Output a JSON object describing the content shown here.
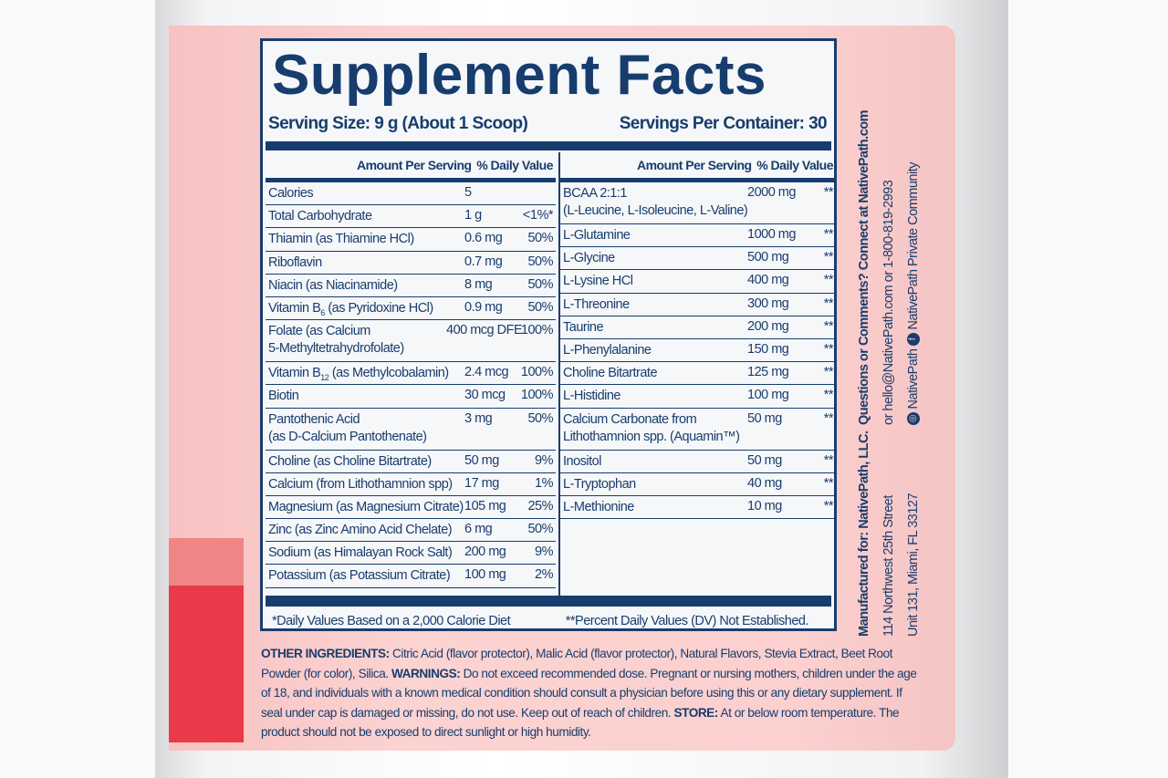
{
  "panel": {
    "title": "Supplement Facts",
    "serving_size": "Serving Size: 9 g (About 1 Scoop)",
    "servings_per_container": "Servings Per Container: 30",
    "header_amount": "Amount Per Serving",
    "header_dv": "% Daily Value",
    "left_rows": [
      {
        "name": "Calories",
        "sub": "",
        "rest": "",
        "amount": "5",
        "dv": "",
        "tall": false
      },
      {
        "name": "Total Carbohydrate",
        "sub": "",
        "rest": "",
        "amount": "1 g",
        "dv": "<1%*",
        "tall": false
      },
      {
        "name": "Thiamin (as Thiamine HCl)",
        "sub": "",
        "rest": "",
        "amount": "0.6 mg",
        "dv": "50%",
        "tall": false
      },
      {
        "name": "Riboflavin",
        "sub": "",
        "rest": "",
        "amount": "0.7 mg",
        "dv": "50%",
        "tall": false
      },
      {
        "name": "Niacin (as Niacinamide)",
        "sub": "",
        "rest": "",
        "amount": "8 mg",
        "dv": "50%",
        "tall": false
      },
      {
        "name": "Vitamin B",
        "sub": "6",
        "rest": " (as Pyridoxine HCl)",
        "amount": "0.9 mg",
        "dv": "50%",
        "tall": false
      },
      {
        "name": "Folate (as Calcium",
        "sub": "",
        "rest": "",
        "line2": "5-Methyltetrahydrofolate)",
        "amount": "400 mcg DFE",
        "dv": "100%",
        "tall": true
      },
      {
        "name": "Vitamin B",
        "sub": "12",
        "rest": " (as Methylcobalamin)",
        "amount": "2.4 mcg",
        "dv": "100%",
        "tall": false
      },
      {
        "name": "Biotin",
        "sub": "",
        "rest": "",
        "amount": "30 mcg",
        "dv": "100%",
        "tall": false
      },
      {
        "name": "Pantothenic Acid",
        "sub": "",
        "rest": "",
        "line2": "(as D-Calcium Pantothenate)",
        "amount": "3 mg",
        "dv": "50%",
        "tall": true
      },
      {
        "name": "Choline (as Choline Bitartrate)",
        "sub": "",
        "rest": "",
        "amount": "50 mg",
        "dv": "9%",
        "tall": false
      },
      {
        "name": "Calcium (from Lithothamnion spp)",
        "sub": "",
        "rest": "",
        "amount": "17 mg",
        "dv": "1%",
        "tall": false
      },
      {
        "name": "Magnesium (as Magnesium Citrate)",
        "sub": "",
        "rest": "",
        "amount": "105 mg",
        "dv": "25%",
        "tall": false
      },
      {
        "name": "Zinc (as Zinc Amino Acid Chelate)",
        "sub": "",
        "rest": "",
        "amount": "6 mg",
        "dv": "50%",
        "tall": false
      },
      {
        "name": "Sodium (as Himalayan Rock Salt)",
        "sub": "",
        "rest": "",
        "amount": "200 mg",
        "dv": "9%",
        "tall": false
      },
      {
        "name": "Potassium (as Potassium Citrate)",
        "sub": "",
        "rest": "",
        "amount": "100 mg",
        "dv": "2%",
        "tall": false
      }
    ],
    "right_rows": [
      {
        "name": "BCAA 2:1:1",
        "line2": "(L-Leucine, L-Isoleucine, L-Valine)",
        "amount": "2000 mg",
        "dv": "**",
        "tall": true
      },
      {
        "name": "L-Glutamine",
        "amount": "1000 mg",
        "dv": "**",
        "tall": false
      },
      {
        "name": "L-Glycine",
        "amount": "500 mg",
        "dv": "**",
        "tall": false
      },
      {
        "name": "L-Lysine HCl",
        "amount": "400 mg",
        "dv": "**",
        "tall": false
      },
      {
        "name": "L-Threonine",
        "amount": "300 mg",
        "dv": "**",
        "tall": false
      },
      {
        "name": "Taurine",
        "amount": "200 mg",
        "dv": "**",
        "tall": false
      },
      {
        "name": "L-Phenylalanine",
        "amount": "150 mg",
        "dv": "**",
        "tall": false
      },
      {
        "name": "Choline Bitartrate",
        "amount": "125 mg",
        "dv": "**",
        "tall": false
      },
      {
        "name": "L-Histidine",
        "amount": "100 mg",
        "dv": "**",
        "tall": false
      },
      {
        "name": "Calcium Carbonate from",
        "line2": "Lithothamnion spp. (Aquamin™)",
        "amount": "50 mg",
        "dv": "**",
        "tall": true
      },
      {
        "name": "Inositol",
        "amount": "50 mg",
        "dv": "**",
        "tall": false
      },
      {
        "name": "L-Tryptophan",
        "amount": "40 mg",
        "dv": "**",
        "tall": false
      },
      {
        "name": "L-Methionine",
        "amount": "10 mg",
        "dv": "**",
        "tall": false
      }
    ],
    "footnote_left": "*Daily Values Based on a 2,000 Calorie Diet",
    "footnote_right": "**Percent Daily Values (DV) Not Established."
  },
  "other": {
    "ingredients_label": "OTHER INGREDIENTS:",
    "ingredients_text": " Citric Acid (flavor protector), Malic Acid (flavor protector), Natural Flavors, Stevia Extract, Beet Root Powder (for color), Silica. ",
    "warnings_label": "WARNINGS:",
    "warnings_text": " Do not exceed recommended dose. Pregnant or nursing mothers, children under the age of 18, and individuals with a known medical condition should consult a physician before using this or any dietary supplement. If seal under cap is damaged or missing, do not use. Keep out of reach of children. ",
    "store_label": "STORE:",
    "store_text": " At or below room temperature. The product should not be exposed to direct sunlight or high humidity."
  },
  "side": {
    "manufacturer_1": "Manufactured for: NativePath, LLC.",
    "manufacturer_2": "114 Northwest 25th Street",
    "manufacturer_3": "Unit 131, Miami, FL 33127",
    "contact_1": "Questions or Comments? Connect at NativePath.com",
    "contact_2": "or hello@NativePath.com or 1-800-819-2993",
    "instagram_handle": "NativePath",
    "facebook_handle": "NativePath Private Community",
    "icons": [
      "instagram-icon",
      "facebook-icon"
    ]
  },
  "colors": {
    "navy": "#173d6e",
    "label_pink": "#fbd0cf",
    "accent_red": "#ea3a49"
  }
}
